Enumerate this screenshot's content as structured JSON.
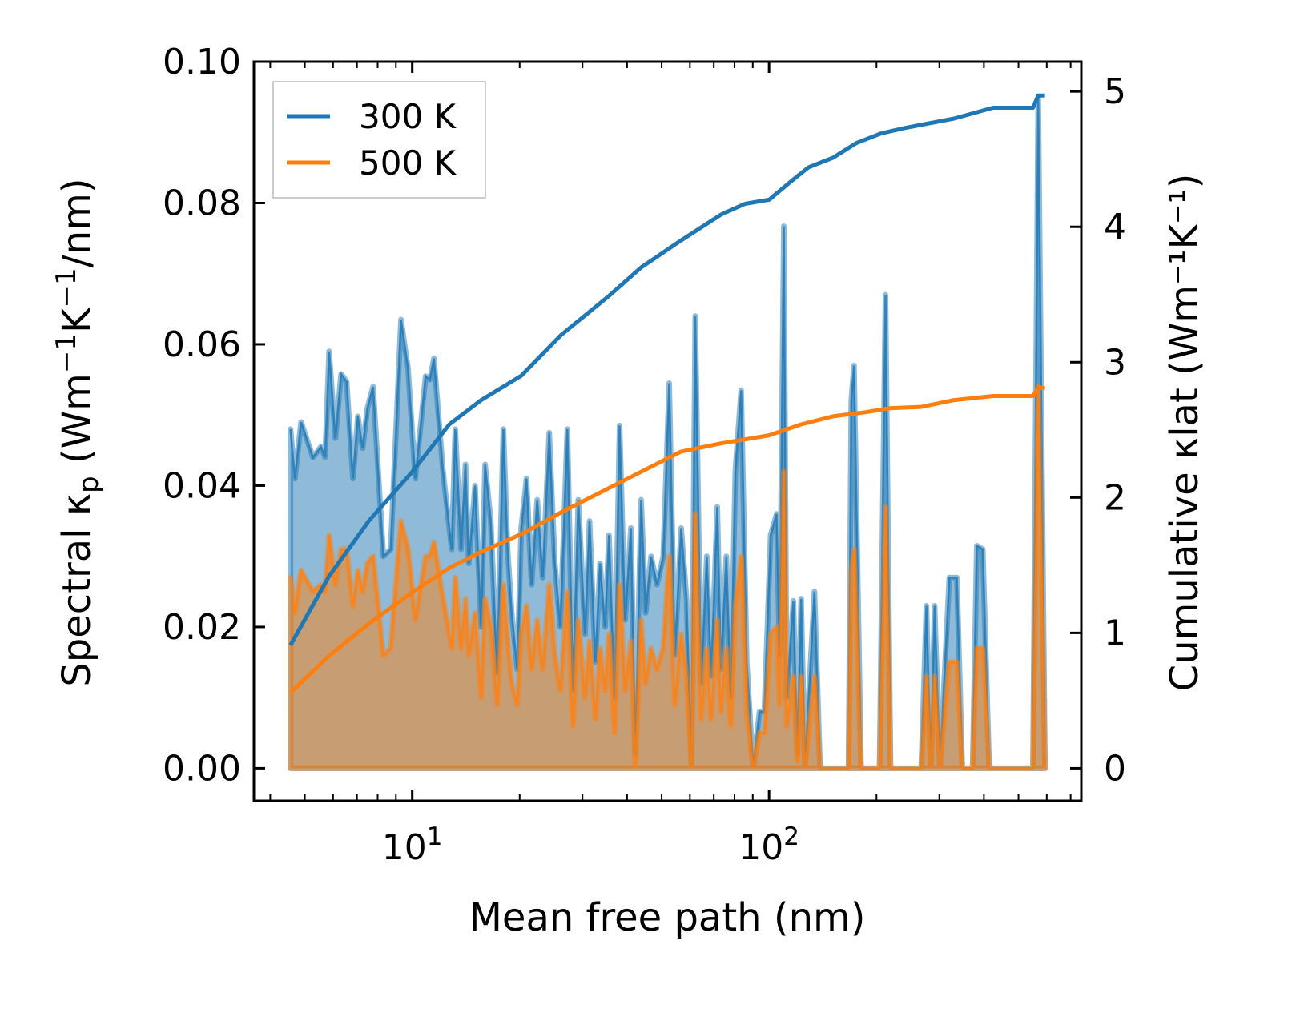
{
  "chart_data": {
    "type": "area",
    "xlabel": "Mean free path (nm)",
    "ylabel_left": "Spectral κp (Wm⁻¹K⁻¹/nm)",
    "ylabel_left_parts": {
      "main": "Spectral κ",
      "sub": "p",
      "unit": " (Wm",
      "sup1": "−1",
      "k": "K",
      "sup2": "−1",
      "tail": "/nm)"
    },
    "ylabel_right": "Cumulative κlat (Wm⁻¹K⁻¹)",
    "ylabel_right_parts": {
      "main": "Cumulative κ",
      "sub": "lat",
      "unit": " (Wm",
      "sup1": "−1",
      "k": "K",
      "sup2": "−1",
      "tail": ")"
    },
    "xscale": "log",
    "xlim": [
      3.6,
      750
    ],
    "ylim_left": [
      -0.0046,
      0.1
    ],
    "ylim_right": [
      -0.24,
      5.22
    ],
    "xticks": [
      {
        "value": 10,
        "base": "10",
        "exp": "1"
      },
      {
        "value": 100,
        "base": "10",
        "exp": "2"
      }
    ],
    "yticks_left": [
      "0.00",
      "0.02",
      "0.04",
      "0.06",
      "0.08",
      "0.10"
    ],
    "yticks_right": [
      "0",
      "1",
      "2",
      "3",
      "4",
      "5"
    ],
    "legend": {
      "placement": "top-left",
      "entries": [
        {
          "label": "300 K",
          "color": "#1f77b4"
        },
        {
          "label": "500 K",
          "color": "#ff7f0e"
        }
      ]
    },
    "colors": {
      "blue": "#1f77b4",
      "orange": "#ff7f0e"
    },
    "spectral": {
      "columns": [
        "mfp_nm",
        "300K",
        "500K"
      ],
      "points": [
        [
          4.56,
          0.048,
          0.027
        ],
        [
          4.69,
          0.041,
          0.022
        ],
        [
          4.88,
          0.049,
          0.028
        ],
        [
          5.27,
          0.044,
          0.025
        ],
        [
          5.55,
          0.0455,
          0.026
        ],
        [
          5.7,
          0.044,
          0.025
        ],
        [
          5.85,
          0.059,
          0.033
        ],
        [
          6.09,
          0.0467,
          0.026
        ],
        [
          6.32,
          0.0558,
          0.031
        ],
        [
          6.55,
          0.0547,
          0.031
        ],
        [
          6.82,
          0.041,
          0.023
        ],
        [
          7.04,
          0.0498,
          0.028
        ],
        [
          7.26,
          0.0453,
          0.025
        ],
        [
          7.49,
          0.051,
          0.029
        ],
        [
          7.77,
          0.054,
          0.03
        ],
        [
          8.3,
          0.03,
          0.016
        ],
        [
          8.7,
          0.031,
          0.017
        ],
        [
          9.3,
          0.0635,
          0.035
        ],
        [
          9.73,
          0.0566,
          0.031
        ],
        [
          10.2,
          0.041,
          0.021
        ],
        [
          10.9,
          0.0555,
          0.03
        ],
        [
          11.2,
          0.055,
          0.03
        ],
        [
          11.5,
          0.058,
          0.032
        ],
        [
          12.2,
          0.042,
          0.024
        ],
        [
          12.9,
          0.031,
          0.017
        ],
        [
          13.2,
          0.048,
          0.027
        ],
        [
          13.7,
          0.031,
          0.017
        ],
        [
          14.1,
          0.043,
          0.024
        ],
        [
          14.4,
          0.029,
          0.016
        ],
        [
          15.0,
          0.04,
          0.022
        ],
        [
          15.6,
          0.02,
          0.01
        ],
        [
          16.0,
          0.043,
          0.024
        ],
        [
          16.6,
          0.035,
          0.02
        ],
        [
          17.3,
          0.0135,
          0.009
        ],
        [
          18.0,
          0.048,
          0.026
        ],
        [
          18.5,
          0.031,
          0.018
        ],
        [
          19.0,
          0.022,
          0.012
        ],
        [
          19.7,
          0.014,
          0.009
        ],
        [
          20.2,
          0.034,
          0.019
        ],
        [
          20.9,
          0.041,
          0.023
        ],
        [
          21.6,
          0.026,
          0.014
        ],
        [
          22.4,
          0.038,
          0.021
        ],
        [
          23.2,
          0.027,
          0.014
        ],
        [
          24.2,
          0.0475,
          0.026
        ],
        [
          25.1,
          0.029,
          0.016
        ],
        [
          26.0,
          0.02,
          0.011
        ],
        [
          27.2,
          0.048,
          0.025
        ],
        [
          28.2,
          0.011,
          0.006
        ],
        [
          29.2,
          0.038,
          0.021
        ],
        [
          30.5,
          0.019,
          0.01
        ],
        [
          31.4,
          0.035,
          0.018
        ],
        [
          32.6,
          0.015,
          0.007
        ],
        [
          33.6,
          0.029,
          0.017
        ],
        [
          34.7,
          0.02,
          0.011
        ],
        [
          35.6,
          0.033,
          0.019
        ],
        [
          36.9,
          0.01,
          0.005
        ],
        [
          38.1,
          0.0485,
          0.026
        ],
        [
          39.5,
          0.021,
          0.011
        ],
        [
          41.0,
          0.034,
          0.018
        ],
        [
          42.2,
          0.002,
          0.0
        ],
        [
          43.8,
          0.038,
          0.021
        ],
        [
          45.1,
          0.022,
          0.012
        ],
        [
          46.7,
          0.03,
          0.017
        ],
        [
          48.5,
          0.026,
          0.014
        ],
        [
          50.5,
          0.03,
          0.017
        ],
        [
          52.5,
          0.0545,
          0.03
        ],
        [
          54.4,
          0.016,
          0.009
        ],
        [
          56.7,
          0.034,
          0.019
        ],
        [
          58.7,
          0.024,
          0.013
        ],
        [
          60.6,
          0.0,
          0.0
        ],
        [
          62.1,
          0.064,
          0.036
        ],
        [
          64.5,
          0.012,
          0.007
        ],
        [
          66.9,
          0.03,
          0.017
        ],
        [
          68.8,
          0.013,
          0.007
        ],
        [
          71.6,
          0.037,
          0.021
        ],
        [
          73.3,
          0.014,
          0.008
        ],
        [
          75.9,
          0.03,
          0.017
        ],
        [
          78.1,
          0.01,
          0.006
        ],
        [
          80.4,
          0.042,
          0.023
        ],
        [
          83.5,
          0.0535,
          0.03
        ],
        [
          86.6,
          0.015,
          0.008
        ],
        [
          90.2,
          0.0,
          0.0
        ],
        [
          94.0,
          0.008,
          0.005
        ],
        [
          97.0,
          0.008,
          0.005
        ],
        [
          101,
          0.033,
          0.019
        ],
        [
          105,
          0.036,
          0.02
        ],
        [
          107,
          0.016,
          0.009
        ],
        [
          110,
          0.0767,
          0.042
        ],
        [
          112,
          0.01,
          0.006
        ],
        [
          117,
          0.0237,
          0.013
        ],
        [
          120,
          0.002,
          0.001
        ],
        [
          123,
          0.024,
          0.013
        ],
        [
          126,
          0.0,
          0.0
        ],
        [
          134,
          0.025,
          0.013
        ],
        [
          139,
          0.0,
          0.0
        ],
        [
          167,
          0.0,
          0.0
        ],
        [
          170,
          0.052,
          0.028
        ],
        [
          173,
          0.057,
          0.031
        ],
        [
          181,
          0.0,
          0.0
        ],
        [
          204,
          0.0,
          0.0
        ],
        [
          212,
          0.067,
          0.037
        ],
        [
          219,
          0.0,
          0.0
        ],
        [
          267,
          0.0,
          0.0
        ],
        [
          276,
          0.023,
          0.013
        ],
        [
          284,
          0.0,
          0.0
        ],
        [
          291,
          0.023,
          0.013
        ],
        [
          301,
          0.0,
          0.0
        ],
        [
          320,
          0.027,
          0.015
        ],
        [
          336,
          0.027,
          0.015
        ],
        [
          348,
          0.0,
          0.0
        ],
        [
          372,
          0.0,
          0.0
        ],
        [
          382,
          0.0315,
          0.017
        ],
        [
          397,
          0.031,
          0.017
        ],
        [
          414,
          0.0,
          0.0
        ],
        [
          549,
          0.0,
          0.0
        ],
        [
          568,
          0.095,
          0.054
        ],
        [
          593,
          0.0,
          0.0
        ]
      ]
    },
    "cumulative": {
      "300K": [
        [
          4.56,
          0.91
        ],
        [
          5.85,
          1.42
        ],
        [
          7.57,
          1.83
        ],
        [
          10.0,
          2.19
        ],
        [
          12.7,
          2.54
        ],
        [
          15.6,
          2.72
        ],
        [
          20.2,
          2.9
        ],
        [
          26.1,
          3.2
        ],
        [
          35.6,
          3.49
        ],
        [
          43.8,
          3.7
        ],
        [
          56.7,
          3.9
        ],
        [
          73.3,
          4.09
        ],
        [
          85.6,
          4.17
        ],
        [
          100,
          4.2
        ],
        [
          117,
          4.35
        ],
        [
          129,
          4.44
        ],
        [
          151,
          4.51
        ],
        [
          176,
          4.62
        ],
        [
          206,
          4.69
        ],
        [
          240,
          4.73
        ],
        [
          330,
          4.8
        ],
        [
          424,
          4.88
        ],
        [
          549,
          4.88
        ],
        [
          568,
          4.97
        ],
        [
          593,
          4.97
        ]
      ],
      "500K": [
        [
          4.56,
          0.56
        ],
        [
          5.85,
          0.83
        ],
        [
          7.57,
          1.07
        ],
        [
          10.0,
          1.3
        ],
        [
          12.7,
          1.48
        ],
        [
          15.6,
          1.6
        ],
        [
          20.2,
          1.73
        ],
        [
          26.1,
          1.89
        ],
        [
          35.6,
          2.07
        ],
        [
          43.8,
          2.19
        ],
        [
          56.7,
          2.34
        ],
        [
          73.3,
          2.4
        ],
        [
          100,
          2.46
        ],
        [
          123,
          2.54
        ],
        [
          151,
          2.6
        ],
        [
          186,
          2.63
        ],
        [
          217,
          2.66
        ],
        [
          267,
          2.67
        ],
        [
          330,
          2.72
        ],
        [
          424,
          2.75
        ],
        [
          549,
          2.75
        ],
        [
          568,
          2.81
        ],
        [
          593,
          2.81
        ]
      ]
    }
  }
}
